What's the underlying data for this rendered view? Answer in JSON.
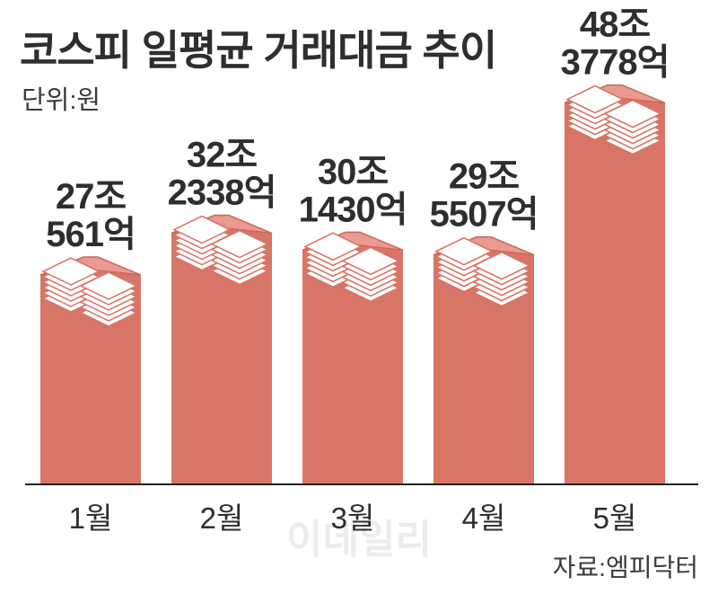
{
  "header": {
    "title": "코스피 일평균 거래대금 추이",
    "unit": "단위:원"
  },
  "source": "자료:엠피닥터",
  "watermark": "이데일리",
  "colors": {
    "bar": "#d87566",
    "bar_top": "#ea9a8e",
    "bar_top_line": "#c9685b",
    "bill": "#ffffff",
    "bill_line": "#d87566",
    "baseline": "#222222",
    "text": "#2e2e2e",
    "watermark": "#ececec"
  },
  "chart_data": {
    "type": "bar",
    "title": "코스피 일평균 거래대금 추이",
    "unit": "단위:원",
    "categories": [
      "1월",
      "2월",
      "3월",
      "4월",
      "5월"
    ],
    "values": [
      270561,
      322338,
      301430,
      295507,
      483778
    ],
    "value_unit": "억원",
    "labels": [
      [
        "27조",
        "561억"
      ],
      [
        "32조",
        "2338억"
      ],
      [
        "30조",
        "1430억"
      ],
      [
        "29조",
        "5507억"
      ],
      [
        "48조",
        "3778억"
      ]
    ],
    "ylim": [
      0,
      500000
    ],
    "grid": false,
    "legend": "none"
  }
}
